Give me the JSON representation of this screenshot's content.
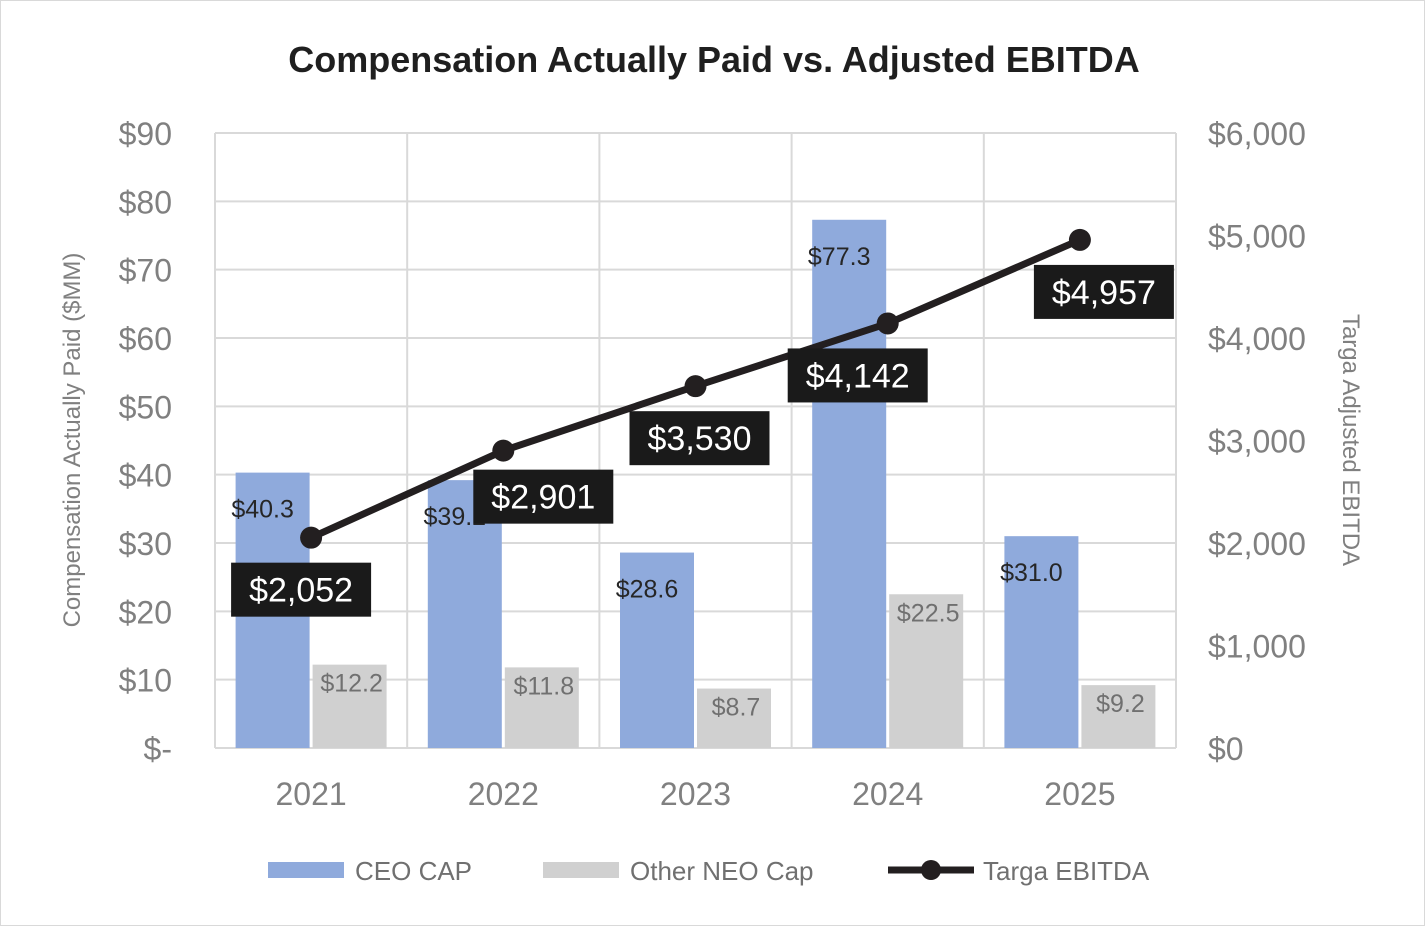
{
  "chart_data": {
    "type": "bar",
    "title": "Compensation Actually Paid vs. Adjusted EBITDA",
    "categories": [
      "2021",
      "2022",
      "2023",
      "2024",
      "2025"
    ],
    "series": [
      {
        "name": "CEO CAP",
        "type": "bar",
        "axis": "left",
        "color": "#8faadc",
        "values": [
          40.3,
          39.2,
          28.6,
          77.3,
          31.0
        ],
        "labels": [
          "$40.3",
          "$39.2",
          "$28.6",
          "$77.3",
          "$31.0"
        ]
      },
      {
        "name": "Other NEO Cap",
        "type": "bar",
        "axis": "left",
        "color": "#d0d0d0",
        "values": [
          12.2,
          11.8,
          8.7,
          22.5,
          9.2
        ],
        "labels": [
          "$12.2",
          "$11.8",
          "$8.7",
          "$22.5",
          "$9.2"
        ]
      },
      {
        "name": "Targa EBITDA",
        "type": "line",
        "axis": "right",
        "color": "#231f20",
        "values": [
          2052,
          2901,
          3530,
          4142,
          4957
        ],
        "labels": [
          "$2,052",
          "$2,901",
          "$3,530",
          "$4,142",
          "$4,957"
        ]
      }
    ],
    "ylabel": "Compensation Actually Paid ($MM)",
    "y2label": "Targa Adjusted EBITDA",
    "ylim": [
      0,
      90
    ],
    "y2lim": [
      0,
      6000
    ],
    "yticks": [
      0,
      10,
      20,
      30,
      40,
      50,
      60,
      70,
      80,
      90
    ],
    "ytick_labels": [
      "$-",
      "$10",
      "$20",
      "$30",
      "$40",
      "$50",
      "$60",
      "$70",
      "$80",
      "$90"
    ],
    "y2ticks": [
      0,
      1000,
      2000,
      3000,
      4000,
      5000,
      6000
    ],
    "y2tick_labels": [
      "$0",
      "$1,000",
      "$2,000",
      "$3,000",
      "$4,000",
      "$5,000",
      "$6,000"
    ],
    "grid": true,
    "legend": "bottom"
  }
}
